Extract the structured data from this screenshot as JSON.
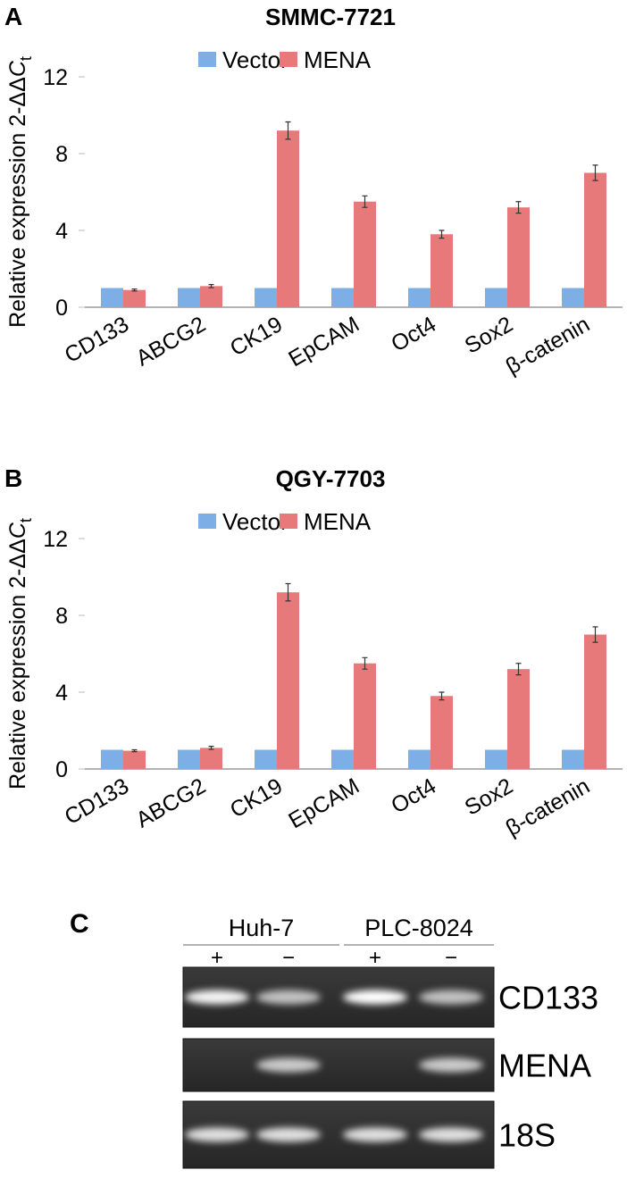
{
  "chart_data": [
    {
      "type": "bar",
      "panel": "A",
      "title": "SMMC-7721",
      "ylabel": "Relative expression 2-ΔΔ",
      "ylabel_italic": "C",
      "ylabel_sub": "t",
      "categories": [
        "CD133",
        "ABCG2",
        "CK19",
        "EpCAM",
        "Oct4",
        "Sox2",
        "β-catenin"
      ],
      "series": [
        {
          "name": "Vector",
          "color": "#7eaee6",
          "values": [
            1,
            1,
            1,
            1,
            1,
            1,
            1
          ]
        },
        {
          "name": "MENA",
          "color": "#e8797a",
          "values": [
            0.9,
            1.1,
            9.2,
            5.5,
            3.8,
            5.2,
            7.0
          ],
          "errors": [
            0.05,
            0.08,
            0.45,
            0.3,
            0.2,
            0.3,
            0.4
          ]
        }
      ],
      "ylim": [
        0,
        12
      ],
      "yticks": [
        0,
        4,
        8,
        12
      ]
    },
    {
      "type": "bar",
      "panel": "B",
      "title": "QGY-7703",
      "ylabel": "Relative expression 2-ΔΔ",
      "ylabel_italic": "C",
      "ylabel_sub": "t",
      "categories": [
        "CD133",
        "ABCG2",
        "CK19",
        "EpCAM",
        "Oct4",
        "Sox2",
        "β-catenin"
      ],
      "series": [
        {
          "name": "Vector",
          "color": "#7eaee6",
          "values": [
            1,
            1,
            1,
            1,
            1,
            1,
            1
          ]
        },
        {
          "name": "MENA",
          "color": "#e8797a",
          "values": [
            0.95,
            1.1,
            9.2,
            5.5,
            3.8,
            5.2,
            7.0
          ],
          "errors": [
            0.05,
            0.08,
            0.45,
            0.3,
            0.2,
            0.3,
            0.4
          ]
        }
      ],
      "ylim": [
        0,
        12
      ],
      "yticks": [
        0,
        4,
        8,
        12
      ]
    }
  ],
  "gel": {
    "panel": "C",
    "groups": [
      {
        "name": "Huh-7",
        "lanes": [
          "+",
          "−"
        ]
      },
      {
        "name": "PLC-8024",
        "lanes": [
          "+",
          "−"
        ]
      }
    ],
    "rows": [
      "CD133",
      "MENA",
      "18S"
    ]
  }
}
